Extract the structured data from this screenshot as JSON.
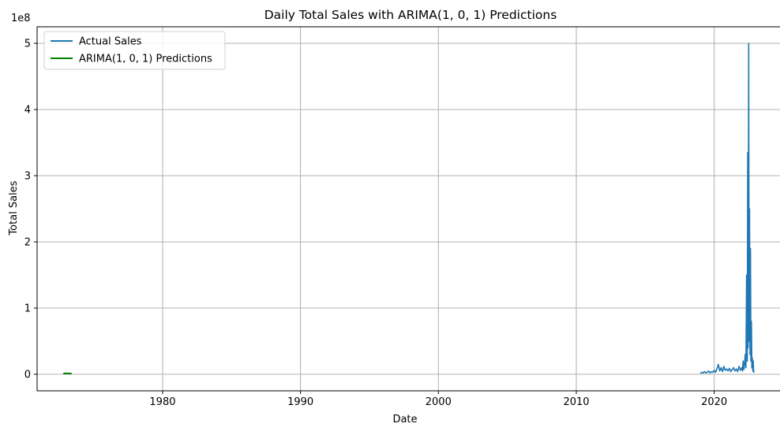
{
  "chart_data": {
    "type": "line",
    "title": "Daily Total Sales with ARIMA(1, 0, 1) Predictions",
    "xlabel": "Date",
    "ylabel": "Total Sales",
    "y_offset_label": "1e8",
    "xlim": [
      1970.9,
      2025.0
    ],
    "ylim": [
      -0.25,
      5.25
    ],
    "y_scale_multiplier": 100000000,
    "x_ticks": [
      1980,
      1990,
      2000,
      2010,
      2020
    ],
    "x_tick_labels": [
      "1980",
      "1990",
      "2000",
      "2010",
      "2020"
    ],
    "y_ticks": [
      0,
      1,
      2,
      3,
      4,
      5
    ],
    "y_tick_labels": [
      "0",
      "1",
      "2",
      "3",
      "4",
      "5"
    ],
    "grid": true,
    "legend_position": "top-left",
    "colors": {
      "actual": "#1f77b4",
      "predictions": "#008000"
    },
    "series": [
      {
        "name": "Actual Sales",
        "color": "#1f77b4",
        "x": [
          2019.0,
          2019.1,
          2019.2,
          2019.3,
          2019.4,
          2019.5,
          2019.6,
          2019.7,
          2019.8,
          2019.9,
          2020.0,
          2020.1,
          2020.2,
          2020.3,
          2020.4,
          2020.5,
          2020.6,
          2020.7,
          2020.8,
          2020.9,
          2021.0,
          2021.1,
          2021.2,
          2021.3,
          2021.4,
          2021.5,
          2021.6,
          2021.7,
          2021.8,
          2021.9,
          2022.0,
          2022.05,
          2022.1,
          2022.15,
          2022.2,
          2022.25,
          2022.3,
          2022.35,
          2022.4,
          2022.43,
          2022.46,
          2022.5,
          2022.53,
          2022.56,
          2022.6,
          2022.63,
          2022.66,
          2022.7,
          2022.73,
          2022.76,
          2022.8,
          2022.83,
          2022.86,
          2022.9
        ],
        "y": [
          0.01,
          0.03,
          0.02,
          0.04,
          0.02,
          0.03,
          0.05,
          0.02,
          0.04,
          0.03,
          0.06,
          0.03,
          0.08,
          0.15,
          0.05,
          0.1,
          0.04,
          0.12,
          0.06,
          0.08,
          0.05,
          0.09,
          0.04,
          0.07,
          0.1,
          0.05,
          0.08,
          0.04,
          0.12,
          0.06,
          0.1,
          0.05,
          0.2,
          0.07,
          0.15,
          0.3,
          0.1,
          1.5,
          0.2,
          3.35,
          0.4,
          5.0,
          0.5,
          2.5,
          0.3,
          1.9,
          0.2,
          0.8,
          0.1,
          0.25,
          0.05,
          0.2,
          0.03,
          0.05
        ]
      },
      {
        "name": "ARIMA(1, 0, 1) Predictions",
        "color": "#008000",
        "x": [
          1972.8,
          1972.9,
          1973.0,
          1973.1,
          1973.2,
          1973.3,
          1973.4
        ],
        "y": [
          0.012,
          0.014,
          0.013,
          0.012,
          0.012,
          0.012,
          0.012
        ]
      }
    ]
  }
}
